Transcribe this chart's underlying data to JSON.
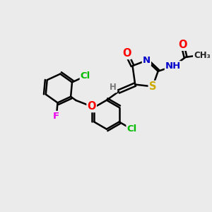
{
  "bg_color": "#ebebeb",
  "bond_color": "#000000",
  "bond_width": 1.8,
  "atom_colors": {
    "C": "#000000",
    "N": "#0000cc",
    "O": "#ff0000",
    "S": "#ccaa00",
    "Cl": "#00bb00",
    "F": "#ee00ee",
    "H": "#777777"
  },
  "font_size": 9.5,
  "fig_width": 3.0,
  "fig_height": 3.0
}
